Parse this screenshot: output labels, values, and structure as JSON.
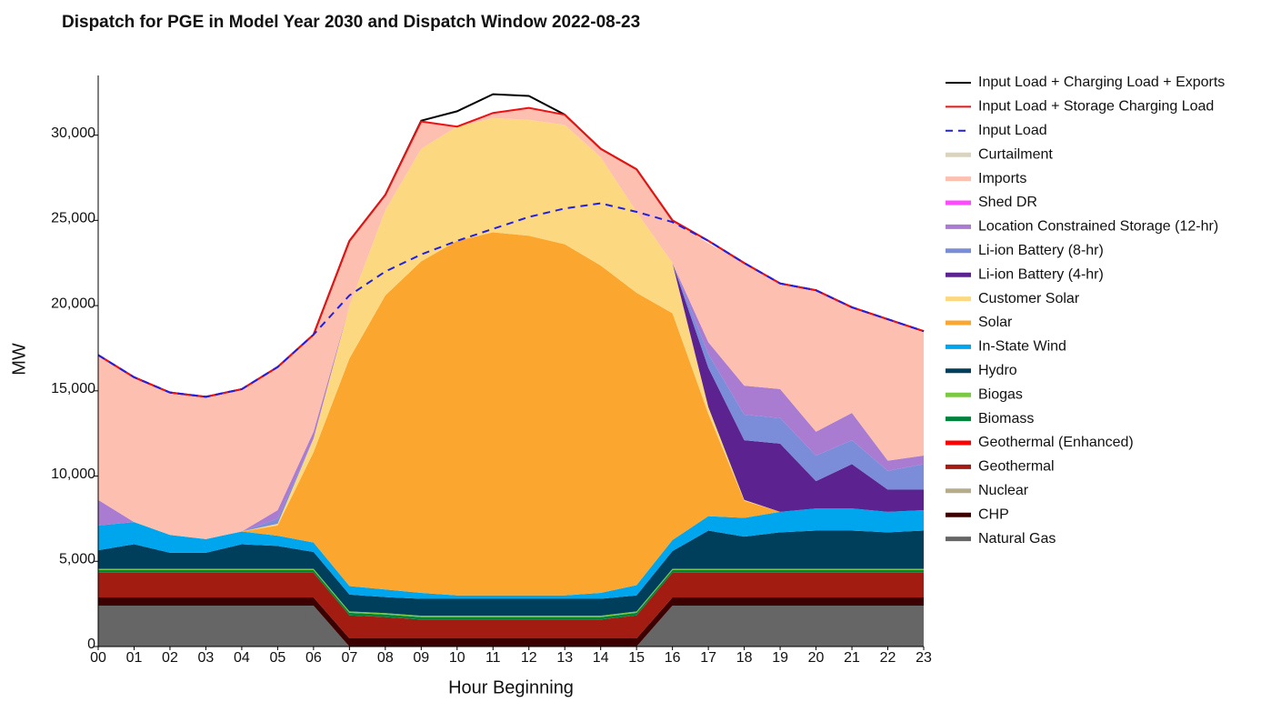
{
  "chart_data": {
    "type": "stacked_area",
    "title": "Dispatch for PGE in Model Year 2030 and Dispatch Window 2022-08-23",
    "x_label": "Hour Beginning",
    "y_label": "MW",
    "categories": [
      "00",
      "01",
      "02",
      "03",
      "04",
      "05",
      "06",
      "07",
      "08",
      "09",
      "10",
      "11",
      "12",
      "13",
      "14",
      "15",
      "16",
      "17",
      "18",
      "19",
      "20",
      "21",
      "22",
      "23"
    ],
    "ylim": [
      0,
      33500
    ],
    "yticks": [
      0,
      {
        "value": 5000,
        "label": "5,000"
      },
      {
        "value": 10000,
        "label": "10,000"
      },
      {
        "value": 15000,
        "label": "15,000"
      },
      {
        "value": 20000,
        "label": "20,000"
      },
      {
        "value": 25000,
        "label": "25,000"
      },
      {
        "value": 30000,
        "label": "30,000"
      }
    ],
    "series": [
      {
        "name": "Natural Gas",
        "color": "#666666",
        "values": [
          2400,
          2400,
          2400,
          2400,
          2400,
          2400,
          2400,
          0,
          0,
          0,
          0,
          0,
          0,
          0,
          0,
          0,
          2400,
          2400,
          2400,
          2400,
          2400,
          2400,
          2400,
          2400
        ]
      },
      {
        "name": "CHP",
        "color": "#3d0000",
        "values": [
          480,
          480,
          480,
          480,
          480,
          480,
          480,
          480,
          480,
          480,
          480,
          480,
          480,
          480,
          480,
          480,
          480,
          480,
          480,
          480,
          480,
          480,
          480,
          480
        ]
      },
      {
        "name": "Nuclear",
        "color": "#b5ad8a",
        "values": [
          0,
          0,
          0,
          0,
          0,
          0,
          0,
          0,
          0,
          0,
          0,
          0,
          0,
          0,
          0,
          0,
          0,
          0,
          0,
          0,
          0,
          0,
          0,
          0
        ]
      },
      {
        "name": "Geothermal",
        "color": "#a31c12",
        "values": [
          1450,
          1450,
          1450,
          1450,
          1450,
          1450,
          1450,
          1350,
          1250,
          1100,
          1100,
          1100,
          1100,
          1100,
          1100,
          1350,
          1450,
          1450,
          1450,
          1450,
          1450,
          1450,
          1450,
          1450
        ]
      },
      {
        "name": "Geothermal (Enhanced)",
        "color": "#ff0000",
        "values": [
          0,
          0,
          0,
          0,
          0,
          0,
          0,
          0,
          0,
          0,
          0,
          0,
          0,
          0,
          0,
          0,
          0,
          0,
          0,
          0,
          0,
          0,
          0,
          0
        ]
      },
      {
        "name": "Biomass",
        "color": "#00843c",
        "values": [
          150,
          150,
          150,
          150,
          150,
          150,
          150,
          150,
          150,
          150,
          150,
          150,
          150,
          150,
          150,
          150,
          150,
          150,
          150,
          150,
          150,
          150,
          150,
          150
        ]
      },
      {
        "name": "Biogas",
        "color": "#7ac943",
        "values": [
          80,
          80,
          80,
          80,
          80,
          80,
          80,
          80,
          80,
          80,
          80,
          80,
          80,
          80,
          80,
          80,
          80,
          80,
          80,
          80,
          80,
          80,
          80,
          80
        ]
      },
      {
        "name": "Hydro",
        "color": "#003f5c",
        "values": [
          1090,
          1440,
          940,
          940,
          1440,
          1340,
          990,
          990,
          940,
          990,
          990,
          990,
          990,
          990,
          990,
          940,
          1040,
          2240,
          1890,
          2140,
          2240,
          2240,
          2140,
          2240
        ]
      },
      {
        "name": "In-State Wind",
        "color": "#00a6ed",
        "values": [
          1450,
          1300,
          1050,
          800,
          750,
          600,
          550,
          500,
          450,
          350,
          200,
          200,
          200,
          200,
          350,
          600,
          650,
          850,
          1100,
          1200,
          1300,
          1300,
          1200,
          1200
        ]
      },
      {
        "name": "Solar",
        "color": "#fba62e",
        "values": [
          0,
          0,
          0,
          0,
          0,
          600,
          5300,
          13350,
          17250,
          19450,
          20800,
          21300,
          21100,
          20600,
          19200,
          17150,
          13300,
          6000,
          1000,
          0,
          0,
          0,
          0,
          0
        ]
      },
      {
        "name": "Customer Solar",
        "color": "#fcd981",
        "values": [
          0,
          0,
          0,
          0,
          0,
          100,
          800,
          3100,
          5000,
          6600,
          6700,
          6700,
          6800,
          7000,
          6350,
          4750,
          2950,
          400,
          50,
          0,
          0,
          0,
          0,
          0
        ]
      },
      {
        "name": "Li-ion Battery (4-hr)",
        "color": "#5b2290",
        "values": [
          0,
          0,
          0,
          0,
          0,
          0,
          0,
          0,
          0,
          0,
          0,
          0,
          0,
          0,
          0,
          0,
          0,
          2300,
          3500,
          4000,
          1600,
          2600,
          1300,
          1200
        ]
      },
      {
        "name": "Li-ion Battery (8-hr)",
        "color": "#7b8cd8",
        "values": [
          0,
          0,
          0,
          0,
          0,
          300,
          0,
          0,
          0,
          0,
          0,
          0,
          0,
          0,
          0,
          0,
          0,
          800,
          1500,
          1500,
          1500,
          1400,
          1100,
          1500
        ]
      },
      {
        "name": "Location Constrained Storage (12-hr)",
        "color": "#a97bd1",
        "values": [
          1500,
          0,
          0,
          0,
          0,
          500,
          400,
          0,
          0,
          0,
          0,
          0,
          0,
          0,
          0,
          0,
          0,
          700,
          1700,
          1700,
          1400,
          1600,
          600,
          500
        ]
      },
      {
        "name": "Shed DR",
        "color": "#ff4bff",
        "values": [
          0,
          0,
          0,
          0,
          0,
          0,
          0,
          0,
          0,
          0,
          0,
          0,
          0,
          0,
          0,
          0,
          0,
          0,
          0,
          0,
          0,
          0,
          0,
          0
        ]
      },
      {
        "name": "Imports",
        "color": "#fdbfb0",
        "values": [
          8500,
          8500,
          8350,
          8350,
          8350,
          8400,
          5700,
          3800,
          900,
          1600,
          0,
          300,
          700,
          600,
          500,
          2500,
          2500,
          5800,
          7200,
          6200,
          8300,
          6200,
          8300,
          7300
        ]
      },
      {
        "name": "Curtailment",
        "color": "#d9d4c0",
        "values": [
          0,
          0,
          0,
          0,
          0,
          0,
          0,
          0,
          0,
          0,
          0,
          0,
          0,
          0,
          0,
          0,
          0,
          0,
          0,
          0,
          0,
          0,
          0,
          0
        ]
      }
    ],
    "line_series": [
      {
        "name": "Input Load + Charging Load + Exports",
        "color": "#000000",
        "dashed": false,
        "values": [
          17100,
          15800,
          14900,
          14650,
          15100,
          16400,
          18300,
          23800,
          26500,
          30850,
          31400,
          32400,
          32300,
          31200,
          29200,
          28000,
          25000,
          23800,
          22500,
          21300,
          20900,
          19900,
          19200,
          18500
        ]
      },
      {
        "name": "Input Load + Storage Charging Load",
        "color": "#ee1111",
        "dashed": false,
        "values": [
          17100,
          15800,
          14900,
          14650,
          15100,
          16400,
          18300,
          23800,
          26500,
          30800,
          30500,
          31300,
          31600,
          31200,
          29200,
          28000,
          25000,
          23800,
          22500,
          21300,
          20900,
          19900,
          19200,
          18500
        ]
      },
      {
        "name": "Input Load",
        "color": "#1f1fe6",
        "dashed": true,
        "values": [
          17100,
          15800,
          14900,
          14650,
          15100,
          16400,
          18300,
          20600,
          22000,
          23000,
          23800,
          24500,
          25200,
          25700,
          26000,
          25500,
          24900,
          23800,
          22500,
          21300,
          20900,
          19900,
          19200,
          18500
        ]
      }
    ]
  }
}
